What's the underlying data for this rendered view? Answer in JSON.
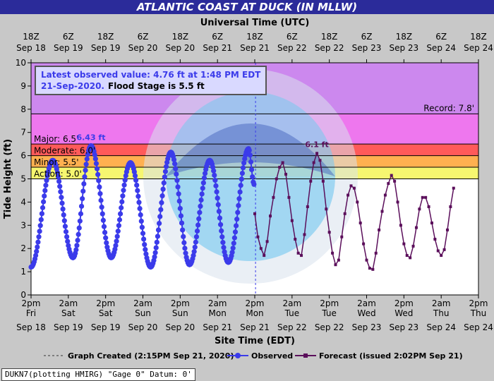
{
  "title": "ATLANTIC COAST AT DUCK (IN MLLW)",
  "footer_note": "DUKN7(plotting HMIRG) \"Gage 0\" Datum: 0'",
  "colors": {
    "observed": "#3b3bea",
    "forecast": "#5b0f5b",
    "record_band": "#cc88ee",
    "major_band": "#ee77ee",
    "moderate_band": "#ff5a5a",
    "minor_band": "#ffb050",
    "action_band": "#f6f670",
    "title_bar": "#2b2b9a"
  },
  "chart_data": {
    "type": "line",
    "title": "ATLANTIC COAST AT DUCK (IN MLLW)",
    "top_axis_label": "Universal Time (UTC)",
    "xlabel": "Site Time (EDT)",
    "ylabel": "Tide Height (ft)",
    "ylim": [
      0,
      10
    ],
    "y_ticks": [
      0,
      1,
      2,
      3,
      4,
      5,
      6,
      7,
      8,
      9,
      10
    ],
    "x_range_hours_edt": [
      "Sep 18 2pm",
      "Sep 24 2pm"
    ],
    "bottom_ticks": [
      {
        "time": "2pm",
        "day": "Fri",
        "date": "Sep 18"
      },
      {
        "time": "2am",
        "day": "Sat",
        "date": "Sep 19"
      },
      {
        "time": "2pm",
        "day": "Sat",
        "date": "Sep 19"
      },
      {
        "time": "2am",
        "day": "Sun",
        "date": "Sep 20"
      },
      {
        "time": "2pm",
        "day": "Sun",
        "date": "Sep 20"
      },
      {
        "time": "2am",
        "day": "Mon",
        "date": "Sep 21"
      },
      {
        "time": "2pm",
        "day": "Mon",
        "date": "Sep 21"
      },
      {
        "time": "2am",
        "day": "Tue",
        "date": "Sep 22"
      },
      {
        "time": "2pm",
        "day": "Tue",
        "date": "Sep 22"
      },
      {
        "time": "2am",
        "day": "Wed",
        "date": "Sep 23"
      },
      {
        "time": "2pm",
        "day": "Wed",
        "date": "Sep 23"
      },
      {
        "time": "2am",
        "day": "Thu",
        "date": "Sep 24"
      },
      {
        "time": "2pm",
        "day": "Thu",
        "date": "Sep 24"
      }
    ],
    "top_ticks": [
      {
        "time": "18Z",
        "date": "Sep 18"
      },
      {
        "time": "6Z",
        "date": "Sep 19"
      },
      {
        "time": "18Z",
        "date": "Sep 19"
      },
      {
        "time": "6Z",
        "date": "Sep 20"
      },
      {
        "time": "18Z",
        "date": "Sep 20"
      },
      {
        "time": "6Z",
        "date": "Sep 21"
      },
      {
        "time": "18Z",
        "date": "Sep 21"
      },
      {
        "time": "6Z",
        "date": "Sep 22"
      },
      {
        "time": "18Z",
        "date": "Sep 22"
      },
      {
        "time": "6Z",
        "date": "Sep 23"
      },
      {
        "time": "18Z",
        "date": "Sep 23"
      },
      {
        "time": "6Z",
        "date": "Sep 24"
      },
      {
        "time": "18Z",
        "date": "Sep 24"
      }
    ],
    "flood_categories": [
      {
        "label": "Record: 7.8'",
        "value": 7.8
      },
      {
        "label": "Major: 6.5'",
        "value": 6.5
      },
      {
        "label": "Moderate: 6.0'",
        "value": 6.0
      },
      {
        "label": "Minor: 5.5'",
        "value": 5.5
      },
      {
        "label": "Action: 5.0'",
        "value": 5.0
      }
    ],
    "info_box": {
      "line1": "Latest observed value: 4.76 ft at 1:48 PM EDT",
      "line2_date": "21-Sep-2020.",
      "line2_flood": "Flood Stage is 5.5 ft"
    },
    "observed_peak_label": "6.43 ft",
    "forecast_peak_label": "6.1 ft",
    "graph_created_hours": 72.25,
    "observed_extrema": [
      {
        "h": 0,
        "v": 1.2
      },
      {
        "h": 7.0,
        "v": 5.8
      },
      {
        "h": 13.5,
        "v": 1.6
      },
      {
        "h": 19.3,
        "v": 6.43
      },
      {
        "h": 25.8,
        "v": 1.6
      },
      {
        "h": 32.0,
        "v": 5.7
      },
      {
        "h": 38.5,
        "v": 1.2
      },
      {
        "h": 45.0,
        "v": 6.15
      },
      {
        "h": 51.0,
        "v": 1.3
      },
      {
        "h": 57.5,
        "v": 5.8
      },
      {
        "h": 63.5,
        "v": 1.4
      },
      {
        "h": 70.0,
        "v": 6.3
      },
      {
        "h": 71.8,
        "v": 4.76
      }
    ],
    "series": [
      {
        "name": "Observed",
        "points": [
          {
            "h": 0,
            "v": 1.2
          },
          {
            "h": 7.0,
            "v": 5.8
          },
          {
            "h": 13.5,
            "v": 1.6
          },
          {
            "h": 19.3,
            "v": 6.43
          },
          {
            "h": 25.8,
            "v": 1.6
          },
          {
            "h": 32.0,
            "v": 5.7
          },
          {
            "h": 38.5,
            "v": 1.2
          },
          {
            "h": 45.0,
            "v": 6.15
          },
          {
            "h": 51.0,
            "v": 1.3
          },
          {
            "h": 57.5,
            "v": 5.8
          },
          {
            "h": 63.5,
            "v": 1.4
          },
          {
            "h": 70.0,
            "v": 6.3
          },
          {
            "h": 71.8,
            "v": 4.76
          }
        ]
      },
      {
        "name": "Forecast (issued 2:02PM Sep 21)",
        "points": [
          {
            "h": 72,
            "v": 3.5
          },
          {
            "h": 73,
            "v": 2.5
          },
          {
            "h": 74,
            "v": 2.0
          },
          {
            "h": 75,
            "v": 1.7
          },
          {
            "h": 76,
            "v": 2.3
          },
          {
            "h": 77,
            "v": 3.4
          },
          {
            "h": 78,
            "v": 4.2
          },
          {
            "h": 79,
            "v": 5.0
          },
          {
            "h": 80,
            "v": 5.5
          },
          {
            "h": 81,
            "v": 5.7
          },
          {
            "h": 82,
            "v": 5.2
          },
          {
            "h": 83,
            "v": 4.2
          },
          {
            "h": 84,
            "v": 3.2
          },
          {
            "h": 85,
            "v": 2.4
          },
          {
            "h": 86,
            "v": 1.8
          },
          {
            "h": 87,
            "v": 1.7
          },
          {
            "h": 88,
            "v": 2.6
          },
          {
            "h": 89,
            "v": 3.8
          },
          {
            "h": 90,
            "v": 4.9
          },
          {
            "h": 91,
            "v": 5.7
          },
          {
            "h": 92,
            "v": 6.1
          },
          {
            "h": 93,
            "v": 5.8
          },
          {
            "h": 94,
            "v": 4.9
          },
          {
            "h": 95,
            "v": 3.7
          },
          {
            "h": 96,
            "v": 2.7
          },
          {
            "h": 97,
            "v": 1.8
          },
          {
            "h": 98,
            "v": 1.3
          },
          {
            "h": 99,
            "v": 1.5
          },
          {
            "h": 100,
            "v": 2.5
          },
          {
            "h": 101,
            "v": 3.5
          },
          {
            "h": 102,
            "v": 4.3
          },
          {
            "h": 103,
            "v": 4.7
          },
          {
            "h": 104,
            "v": 4.6
          },
          {
            "h": 105,
            "v": 4.0
          },
          {
            "h": 106,
            "v": 3.1
          },
          {
            "h": 107,
            "v": 2.2
          },
          {
            "h": 108,
            "v": 1.5
          },
          {
            "h": 109,
            "v": 1.15
          },
          {
            "h": 110,
            "v": 1.1
          },
          {
            "h": 111,
            "v": 1.8
          },
          {
            "h": 112,
            "v": 2.8
          },
          {
            "h": 113,
            "v": 3.6
          },
          {
            "h": 114,
            "v": 4.3
          },
          {
            "h": 115,
            "v": 4.8
          },
          {
            "h": 116,
            "v": 5.15
          },
          {
            "h": 117,
            "v": 4.9
          },
          {
            "h": 118,
            "v": 4.0
          },
          {
            "h": 119,
            "v": 3.0
          },
          {
            "h": 120,
            "v": 2.2
          },
          {
            "h": 121,
            "v": 1.7
          },
          {
            "h": 122,
            "v": 1.6
          },
          {
            "h": 123,
            "v": 2.1
          },
          {
            "h": 124,
            "v": 2.9
          },
          {
            "h": 125,
            "v": 3.7
          },
          {
            "h": 126,
            "v": 4.2
          },
          {
            "h": 127,
            "v": 4.2
          },
          {
            "h": 128,
            "v": 3.8
          },
          {
            "h": 129,
            "v": 3.1
          },
          {
            "h": 130,
            "v": 2.4
          },
          {
            "h": 131,
            "v": 1.9
          },
          {
            "h": 132,
            "v": 1.7
          },
          {
            "h": 133,
            "v": 1.95
          },
          {
            "h": 134,
            "v": 2.8
          },
          {
            "h": 135,
            "v": 3.8
          },
          {
            "h": 136,
            "v": 4.6
          }
        ]
      }
    ],
    "legend": [
      {
        "label": "Graph Created (2:15PM Sep 21, 2020)",
        "style": "dashed"
      },
      {
        "label": "Observed",
        "style": "observed"
      },
      {
        "label": "Forecast (issued 2:02PM Sep 21)",
        "style": "forecast"
      }
    ],
    "legend_placement": "bottom",
    "grid": false
  }
}
